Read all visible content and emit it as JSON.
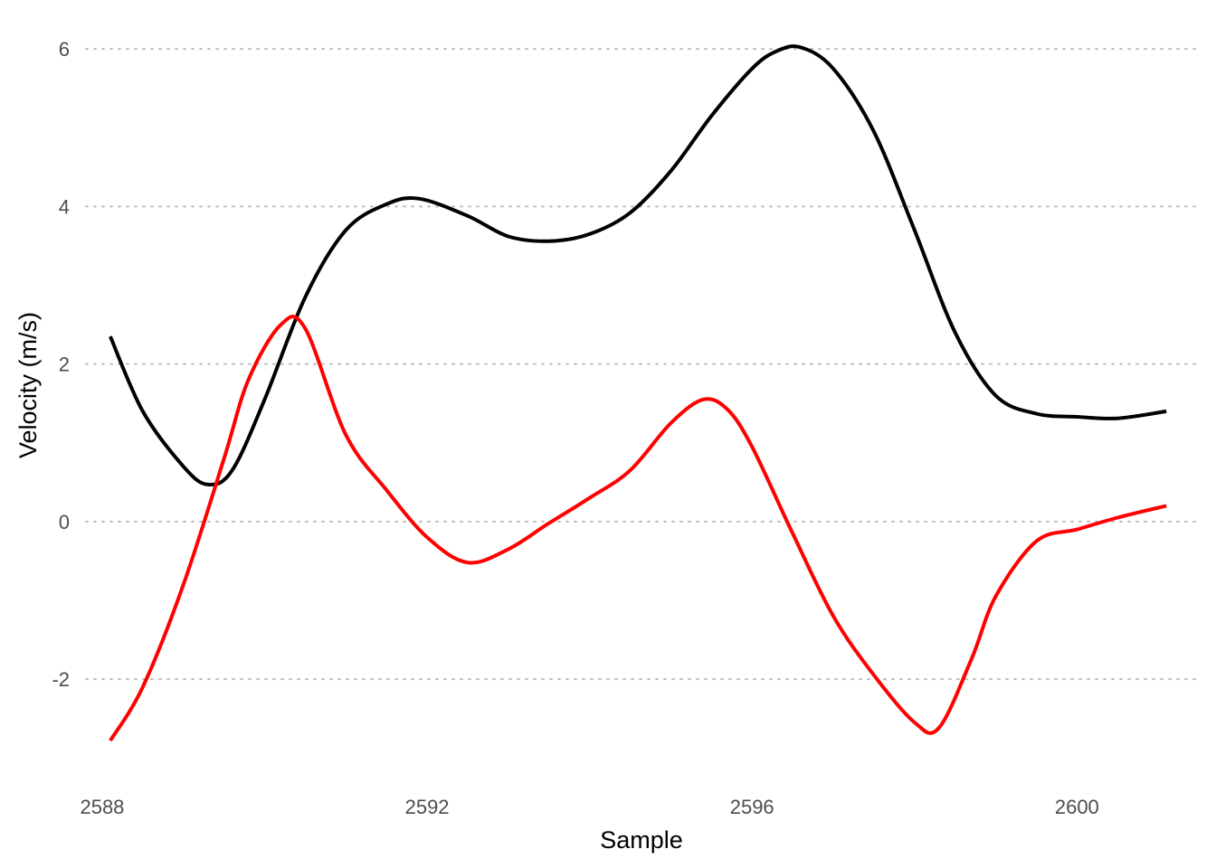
{
  "chart_data": {
    "type": "line",
    "title": "",
    "xlabel": "Sample",
    "ylabel": "Velocity (m/s)",
    "xlim": [
      2587.8,
      2601.5
    ],
    "ylim": [
      -3.25,
      6.3
    ],
    "xticks": [
      2588,
      2592,
      2596,
      2600
    ],
    "xtick_labels": [
      "2588",
      "2592",
      "2596",
      "2600"
    ],
    "yticks": [
      -2,
      0,
      2,
      4,
      6
    ],
    "ytick_labels": [
      "-2",
      "0",
      "2",
      "4",
      "6"
    ],
    "grid": "horizontal-dotted",
    "legend": "none",
    "series": [
      {
        "color": "#000000",
        "x": [
          2588.1,
          2588.5,
          2589.0,
          2589.3,
          2589.6,
          2590.0,
          2590.5,
          2591.0,
          2591.5,
          2591.9,
          2592.5,
          2593.0,
          2593.5,
          2594.0,
          2594.5,
          2595.0,
          2595.5,
          2596.0,
          2596.3,
          2596.6,
          2597.0,
          2597.5,
          2598.0,
          2598.5,
          2599.0,
          2599.5,
          2600.0,
          2600.5,
          2601.1
        ],
        "y": [
          2.35,
          1.4,
          0.7,
          0.47,
          0.65,
          1.55,
          2.85,
          3.7,
          4.03,
          4.1,
          3.88,
          3.62,
          3.56,
          3.65,
          3.92,
          4.45,
          5.15,
          5.75,
          5.97,
          6.02,
          5.75,
          4.95,
          3.7,
          2.4,
          1.6,
          1.37,
          1.33,
          1.31,
          1.4
        ]
      },
      {
        "color": "#ff0000",
        "x": [
          2588.1,
          2588.5,
          2589.0,
          2589.5,
          2589.8,
          2590.2,
          2590.5,
          2591.0,
          2591.5,
          2592.0,
          2592.5,
          2593.0,
          2593.5,
          2594.0,
          2594.5,
          2595.0,
          2595.4,
          2595.7,
          2596.0,
          2596.5,
          2597.0,
          2597.5,
          2598.0,
          2598.3,
          2598.7,
          2599.0,
          2599.5,
          2600.0,
          2600.5,
          2601.1
        ],
        "y": [
          -2.78,
          -2.1,
          -0.8,
          0.8,
          1.8,
          2.5,
          2.45,
          1.1,
          0.4,
          -0.2,
          -0.52,
          -0.35,
          -0.02,
          0.3,
          0.65,
          1.25,
          1.55,
          1.42,
          0.95,
          -0.15,
          -1.2,
          -1.95,
          -2.55,
          -2.62,
          -1.75,
          -0.95,
          -0.25,
          -0.1,
          0.05,
          0.2
        ]
      }
    ]
  }
}
